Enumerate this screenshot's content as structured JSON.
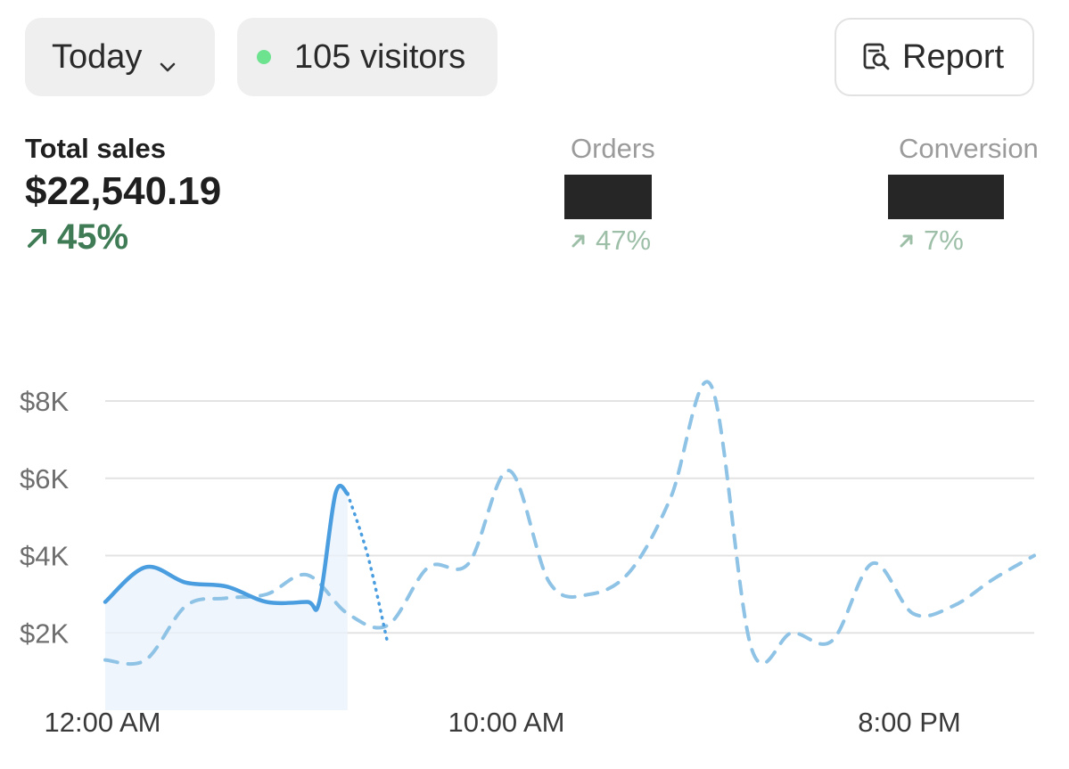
{
  "toolbar": {
    "date_range": "Today",
    "visitors": "105 visitors",
    "report_label": "Report"
  },
  "metrics": {
    "total_sales": {
      "label": "Total sales",
      "value": "$22,540.19",
      "change": "45%"
    },
    "orders": {
      "label": "Orders",
      "value": "",
      "change": "47%"
    },
    "conversion": {
      "label": "Conversion",
      "value": "",
      "change": "7%"
    }
  },
  "colors": {
    "positive": "#3f7c56",
    "positive_muted": "#9dbfa8",
    "live_dot": "#6ee38f",
    "current_series": "#4a9ee0",
    "comparison_series": "#8fc3e6"
  },
  "chart_data": {
    "type": "line",
    "ylim": [
      0,
      8000
    ],
    "y_ticks": [
      "$2K",
      "$4K",
      "$6K",
      "$8K"
    ],
    "x_ticks": [
      "12:00 AM",
      "10:00 AM",
      "8:00 PM"
    ],
    "grid": true,
    "series": [
      {
        "style": "solid",
        "x": [
          0,
          1,
          2,
          3,
          4,
          5,
          5.3,
          5.7,
          6,
          6.5,
          7
        ],
        "values": [
          2800,
          3700,
          3300,
          3200,
          2800,
          2800,
          2800,
          5600,
          5600,
          4000,
          1700
        ]
      },
      {
        "style": "dashed",
        "x": [
          0,
          1,
          2,
          3,
          4,
          5,
          6,
          7,
          8,
          9,
          10,
          11,
          12,
          13,
          14,
          15,
          16,
          17,
          18,
          19,
          20,
          21,
          22,
          23
        ],
        "values": [
          1300,
          1300,
          2700,
          2900,
          3000,
          3500,
          2500,
          2200,
          3700,
          3800,
          6200,
          3300,
          3000,
          3600,
          5500,
          8400,
          1600,
          2000,
          1800,
          3800,
          2500,
          2700,
          3400,
          4000
        ]
      }
    ]
  }
}
